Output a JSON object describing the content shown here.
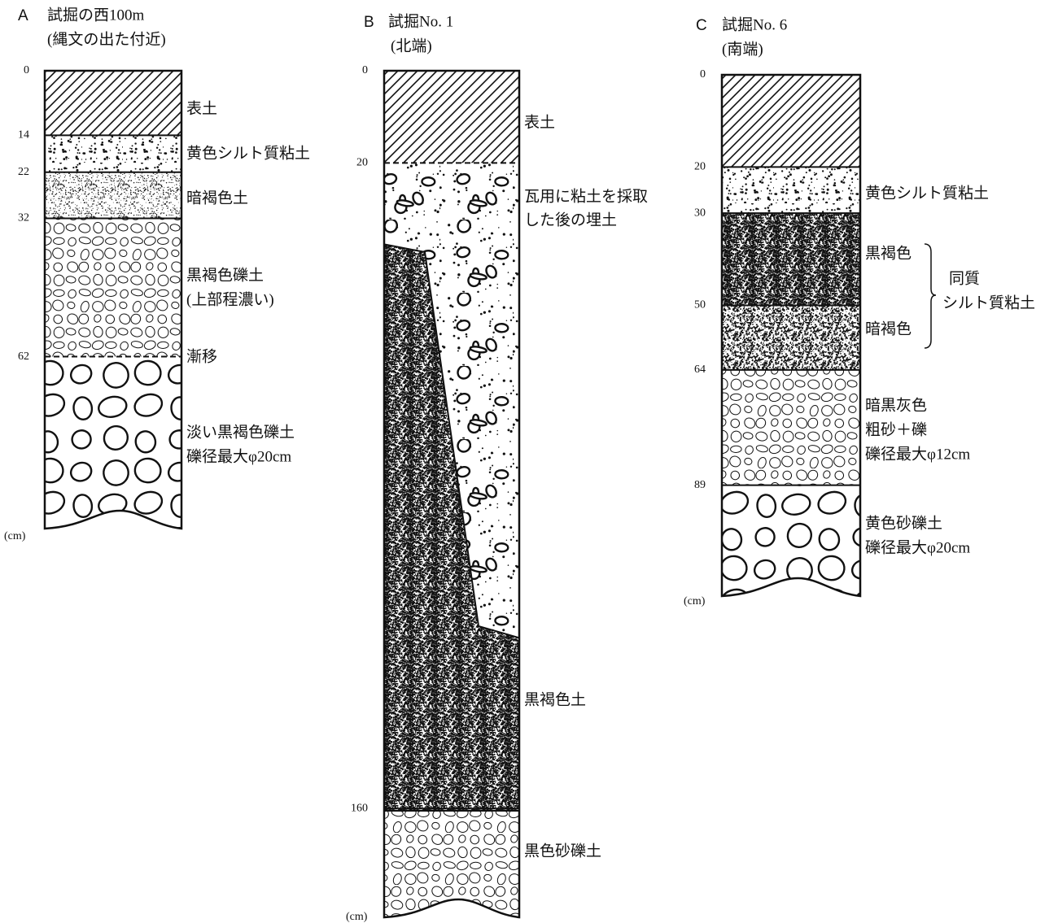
{
  "columns": [
    {
      "letter": "A",
      "title": "試掘の西100m",
      "subtitle": "(縄文の出た付近)",
      "unit": "(cm)",
      "depths": [
        0,
        14,
        22,
        32,
        62
      ],
      "layers": [
        {
          "lines": [
            "表土"
          ]
        },
        {
          "lines": [
            "黄色シルト質粘土"
          ]
        },
        {
          "lines": [
            "暗褐色土"
          ]
        },
        {
          "lines": [
            "黒褐色礫土",
            "(上部程濃い)"
          ]
        },
        {
          "lines": [
            "漸移"
          ]
        },
        {
          "lines": [
            "淡い黒褐色礫土",
            "礫径最大φ20cm"
          ]
        }
      ]
    },
    {
      "letter": "B",
      "title": "試掘No. 1",
      "subtitle": "(北端)",
      "unit": "(cm)",
      "depths": [
        0,
        20,
        160
      ],
      "layers": [
        {
          "lines": [
            "表土"
          ]
        },
        {
          "lines": [
            "瓦用に粘土を採取",
            "した後の埋土"
          ]
        },
        {
          "lines": [
            "黒褐色土"
          ]
        },
        {
          "lines": [
            "黒色砂礫土"
          ]
        }
      ]
    },
    {
      "letter": "C",
      "title": "試掘No. 6",
      "subtitle": "(南端)",
      "unit": "(cm)",
      "depths": [
        0,
        20,
        30,
        50,
        64,
        89
      ],
      "layers": [
        {
          "lines": [
            "黄色シルト質粘土"
          ]
        },
        {
          "lines": [
            "黒褐色"
          ]
        },
        {
          "lines": [
            "暗褐色"
          ]
        },
        {
          "lines": [
            "暗黒灰色",
            "粗砂＋礫",
            "礫径最大φ12cm"
          ]
        },
        {
          "lines": [
            "黄色砂礫土",
            "礫径最大φ20cm"
          ]
        }
      ],
      "note": {
        "lines": [
          "同質",
          "シルト質粘土"
        ]
      }
    }
  ]
}
